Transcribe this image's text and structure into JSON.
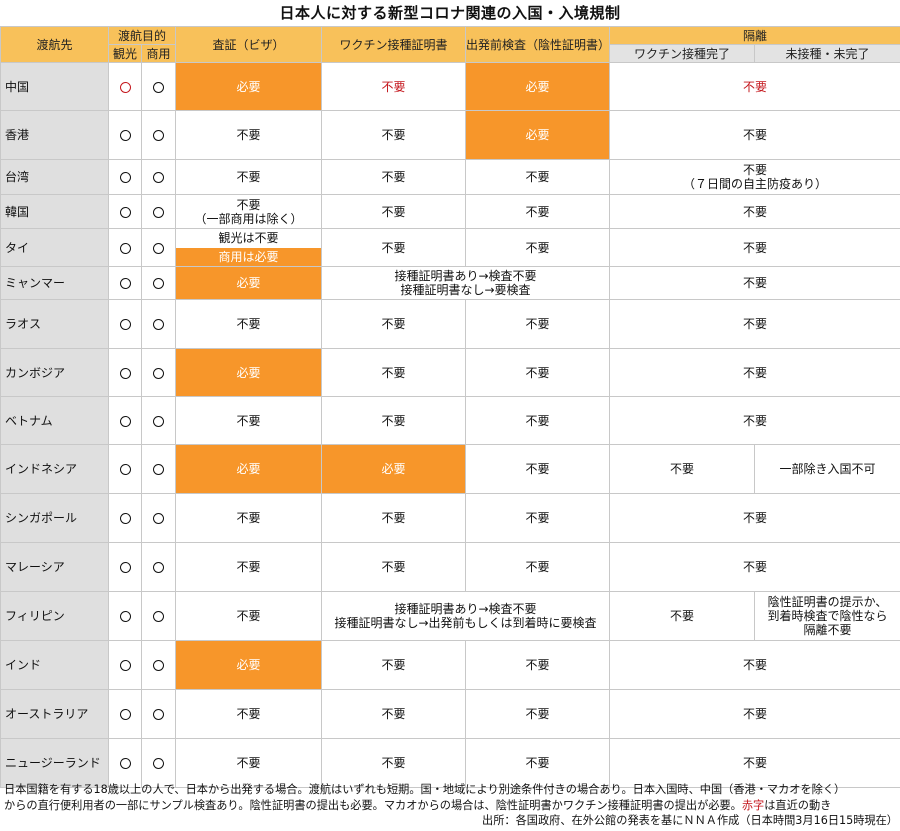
{
  "title": "日本人に対する新型コロナ関連の入国・入境規制",
  "headers": {
    "dest": "渡航先",
    "purpose": "渡航目的",
    "tourism": "観光",
    "business": "商用",
    "visa": "査証（ビザ）",
    "vaccine_cert": "ワクチン接種証明書",
    "pretest": "出発前検査（陰性証明書）",
    "quarantine": "隔離",
    "q_done": "ワクチン接種完了",
    "q_not": "未接種・未完了"
  },
  "circle": "〇",
  "rows": [
    {
      "dest": "中国",
      "visa": "必要",
      "vaccine": "不要",
      "pretest": "必要",
      "quarantine": "不要"
    },
    {
      "dest": "香港",
      "visa": "不要",
      "vaccine": "不要",
      "pretest": "必要",
      "quarantine": "不要"
    },
    {
      "dest": "台湾",
      "visa": "不要",
      "vaccine": "不要",
      "pretest": "不要",
      "quarantine": "不要",
      "quarantine_note": "（７日間の自主防疫あり）"
    },
    {
      "dest": "韓国",
      "visa": "不要",
      "visa_note": "（一部商用は除く）",
      "vaccine": "不要",
      "pretest": "不要",
      "quarantine": "不要"
    },
    {
      "dest": "タイ",
      "visa_top": "観光は不要",
      "visa_bottom": "商用は必要",
      "vaccine": "不要",
      "pretest": "不要",
      "quarantine": "不要"
    },
    {
      "dest": "ミャンマー",
      "visa": "必要",
      "merged_1": "接種証明書あり→検査不要",
      "merged_2": "接種証明書なし→要検査",
      "quarantine": "不要"
    },
    {
      "dest": "ラオス",
      "visa": "不要",
      "vaccine": "不要",
      "pretest": "不要",
      "quarantine": "不要"
    },
    {
      "dest": "カンボジア",
      "visa": "必要",
      "vaccine": "不要",
      "pretest": "不要",
      "quarantine": "不要"
    },
    {
      "dest": "ベトナム",
      "visa": "不要",
      "vaccine": "不要",
      "pretest": "不要",
      "quarantine": "不要"
    },
    {
      "dest": "インドネシア",
      "visa": "必要",
      "vaccine": "必要",
      "pretest": "不要",
      "q_done": "不要",
      "q_not": "一部除き入国不可"
    },
    {
      "dest": "シンガポール",
      "visa": "不要",
      "vaccine": "不要",
      "pretest": "不要",
      "quarantine": "不要"
    },
    {
      "dest": "マレーシア",
      "visa": "不要",
      "vaccine": "不要",
      "pretest": "不要",
      "quarantine": "不要"
    },
    {
      "dest": "フィリピン",
      "visa": "不要",
      "merged_1": "接種証明書あり→検査不要",
      "merged_2": "接種証明書なし→出発前もしくは到着時に要検査",
      "q_done": "不要",
      "q_not_1": "陰性証明書の提示か、",
      "q_not_2": "到着時検査で陰性なら",
      "q_not_3": "隔離不要"
    },
    {
      "dest": "インド",
      "visa": "必要",
      "vaccine": "不要",
      "pretest": "不要",
      "quarantine": "不要"
    },
    {
      "dest": "オーストラリア",
      "visa": "不要",
      "vaccine": "不要",
      "pretest": "不要",
      "quarantine": "不要"
    },
    {
      "dest": "ニュージーランド",
      "visa": "不要",
      "vaccine": "不要",
      "pretest": "不要",
      "quarantine": "不要"
    }
  ],
  "footer": {
    "line1": "日本国籍を有する18歳以上の人で、日本から出発する場合。渡航はいずれも短期。国・地域により別途条件付きの場合あり。日本入国時、中国（香港・マカオを除く）",
    "line2a": "からの直行便利用者の一部にサンプル検査あり。陰性証明書の提出も必要。マカオからの場合は、陰性証明書かワクチン接種証明書の提出が必要。",
    "line2_red": "赤字",
    "line2b": "は直近の動き",
    "source": "出所：各国政府、在外公館の発表を基にＮＮＡ作成（日本時間3月16日15時現在）"
  },
  "colors": {
    "header": "#f8c15a",
    "highlight": "#f7962a",
    "dest_bg": "#dfdfdf",
    "red": "#c4161c"
  }
}
